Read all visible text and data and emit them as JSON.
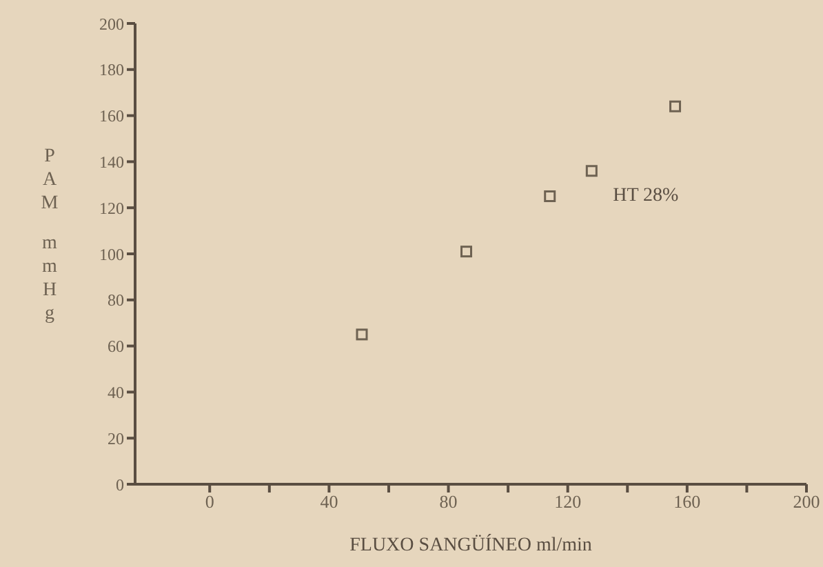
{
  "chart_data": {
    "type": "scatter",
    "xlabel": "FLUXO SANGÜÍNEO ml/min",
    "ylabel": "PAM mmHg",
    "x": [
      51,
      86,
      114,
      128,
      156
    ],
    "series": [
      {
        "name": "HT 28%",
        "color": "#6e6252",
        "values": [
          65,
          101,
          125,
          136,
          164
        ]
      }
    ],
    "xlim": [
      -25,
      200
    ],
    "xticks": [
      0,
      {
        "value": 20,
        "label": null
      },
      40,
      {
        "value": 60,
        "label": null
      },
      80,
      {
        "value": 100,
        "label": null
      },
      120,
      {
        "value": 140,
        "label": null
      },
      160,
      {
        "value": 180,
        "label": null
      },
      200
    ],
    "ylim": [
      0,
      200
    ],
    "yticks": [
      0,
      20,
      40,
      60,
      80,
      100,
      120,
      140,
      160,
      180,
      200
    ],
    "grid": false,
    "legend": false,
    "marker": "square"
  }
}
